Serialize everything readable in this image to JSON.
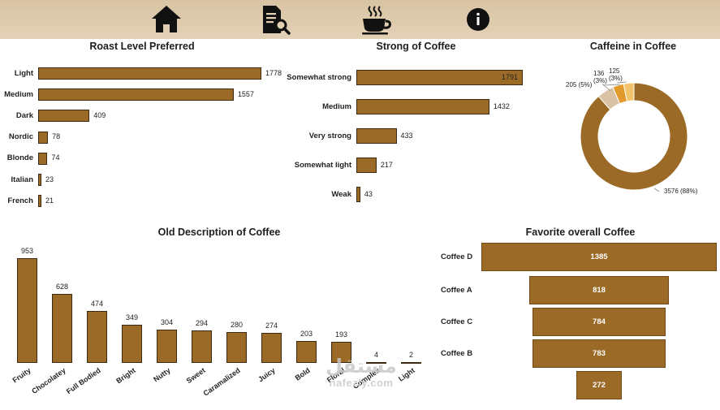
{
  "nav": {
    "items": [
      {
        "name": "home-icon"
      },
      {
        "name": "report-search-icon"
      },
      {
        "name": "coffee-cup-icon"
      },
      {
        "name": "info-icon"
      }
    ]
  },
  "colors": {
    "bar": "#9b6a26",
    "topbar": "#dcc8a9",
    "donut_main": "#9b6a26",
    "donut_2": "#d9c3a4",
    "donut_3": "#e39a2c",
    "donut_4": "#f2c36b"
  },
  "roast": {
    "title": "Roast Level Preferred",
    "chart_data": {
      "type": "bar",
      "categories": [
        "Light",
        "Medium",
        "Dark",
        "Nordic",
        "Blonde",
        "Italian",
        "French"
      ],
      "values": [
        1778,
        1557,
        409,
        78,
        74,
        23,
        21
      ],
      "labels": [
        "1778",
        "1557",
        "409",
        "78",
        "74",
        "23",
        "21"
      ],
      "title": "Roast Level Preferred",
      "orientation": "horizontal"
    }
  },
  "strong": {
    "title": "Strong of Coffee",
    "chart_data": {
      "type": "bar",
      "categories": [
        "Somewhat strong",
        "Medium",
        "Very strong",
        "Somewhat light",
        "Weak"
      ],
      "values": [
        1791,
        1432,
        433,
        217,
        43
      ],
      "labels": [
        "1791",
        "1432",
        "433",
        "217",
        "43"
      ],
      "title": "Strong of Coffee",
      "orientation": "horizontal"
    }
  },
  "caffeine": {
    "title": "Caffeine in Coffee",
    "chart_data": {
      "type": "pie",
      "values": [
        3576,
        205,
        136,
        125
      ],
      "labels": [
        "3576 (88%)",
        "205 (5%)",
        "136 (3%)",
        "125 (3%)"
      ],
      "title": "Caffeine in Coffee",
      "donut": true
    }
  },
  "description": {
    "title": "Old Description of Coffee",
    "chart_data": {
      "type": "bar",
      "categories": [
        "Fruity",
        "Chocolatey",
        "Full Bodied",
        "Bright",
        "Nutty",
        "Sweet",
        "Caramalized",
        "Juicy",
        "Bold",
        "Floral",
        "Complex",
        "Light"
      ],
      "values": [
        953,
        628,
        474,
        349,
        304,
        294,
        280,
        274,
        203,
        193,
        4,
        2
      ],
      "labels": [
        "953",
        "628",
        "474",
        "349",
        "304",
        "294",
        "280",
        "274",
        "203",
        "193",
        "4",
        "2"
      ],
      "title": "Old Description of Coffee"
    }
  },
  "favorite": {
    "title": "Favorite overall Coffee",
    "chart_data": {
      "type": "bar",
      "categories": [
        "Coffee D",
        "Coffee A",
        "Coffee C",
        "Coffee B",
        ""
      ],
      "values": [
        1385,
        818,
        784,
        783,
        272
      ],
      "labels": [
        "1385",
        "818",
        "784",
        "783",
        "272"
      ],
      "title": "Favorite overall Coffee",
      "style": "funnel"
    }
  },
  "watermark": {
    "arabic": "مستقل",
    "latin": "nafezly.com"
  }
}
